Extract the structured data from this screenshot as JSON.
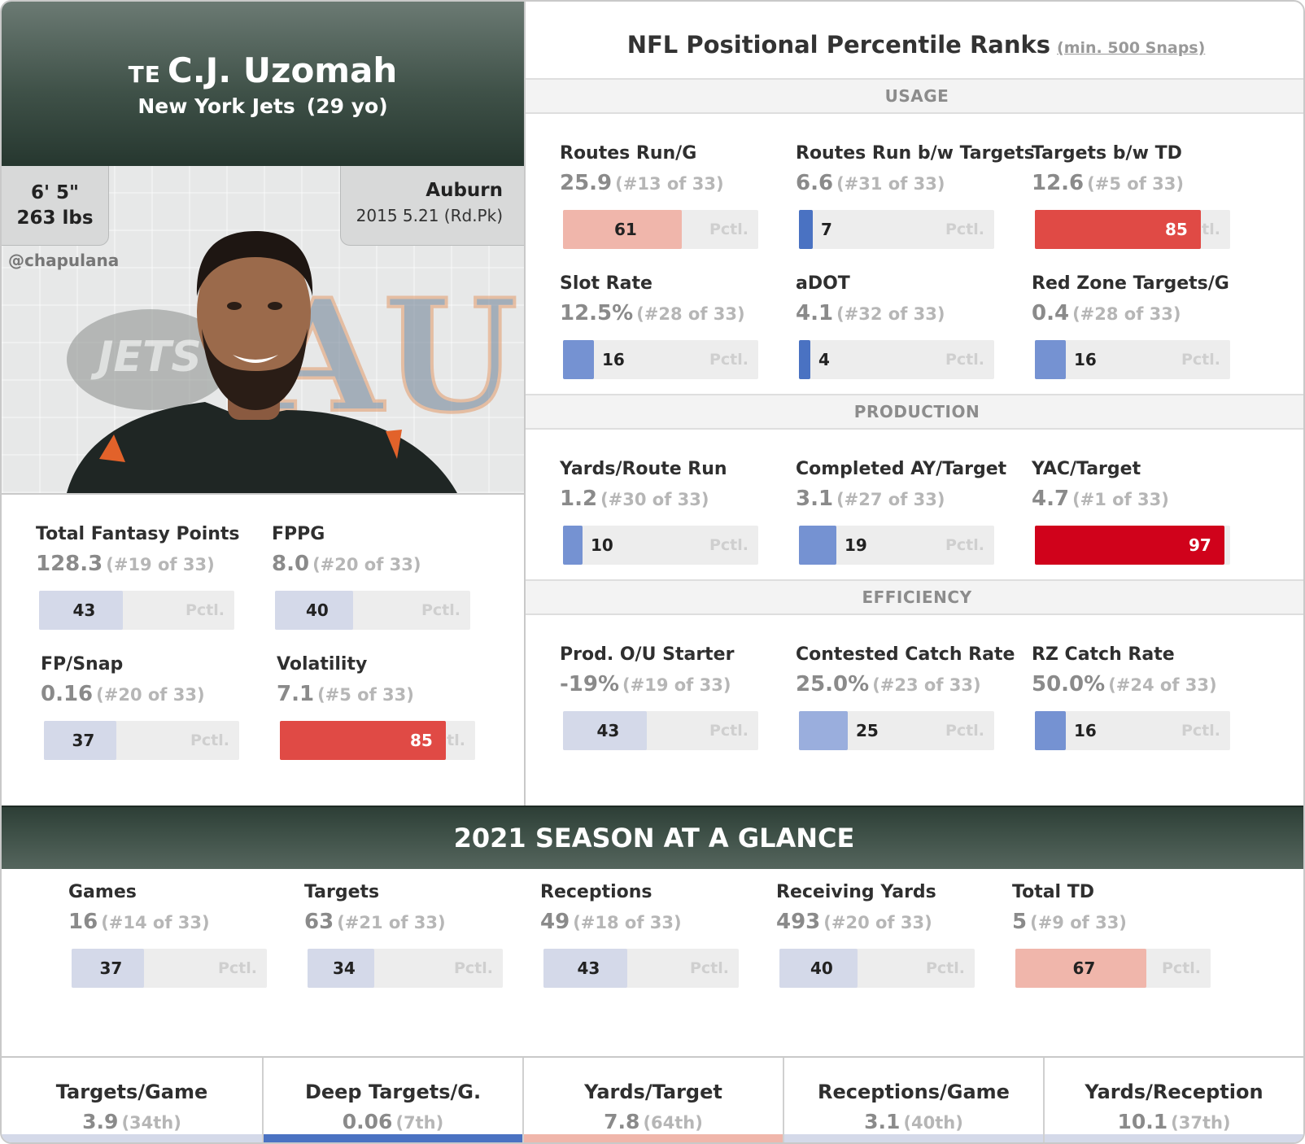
{
  "player": {
    "position": "TE",
    "name": "C.J. Uzomah",
    "team": "New York Jets",
    "age": "(29 yo)",
    "height": "6' 5\"",
    "weight": "263 lbs",
    "college": "Auburn",
    "draft": "2015 5.21 (Rd.Pk)",
    "handle": "@chapulana",
    "team_logo_text": "JETS",
    "college_logo_text": "AU"
  },
  "colors": {
    "header_dark": "#26372f",
    "blue_low": "#4a72c2",
    "blue_light": "#d3d8ea",
    "red_high": "#d0021b",
    "salmon": "#f0b6ab",
    "neutral": "#d7dbe6"
  },
  "pctl_text": "Pctl.",
  "left_metrics": [
    {
      "label": "Total Fantasy Points",
      "value": "128.3",
      "rank": "(#19 of 33)",
      "pctl": 43
    },
    {
      "label": "FPPG",
      "value": "8.0",
      "rank": "(#20 of 33)",
      "pctl": 40
    },
    {
      "label": "FP/Snap",
      "value": "0.16",
      "rank": "(#20 of 33)",
      "pctl": 37
    },
    {
      "label": "Volatility",
      "value": "7.1",
      "rank": "(#5 of 33)",
      "pctl": 85
    }
  ],
  "ranks": {
    "title": "NFL Positional Percentile Ranks",
    "subtitle": "(min. 500 Snaps)",
    "sections": [
      {
        "name": "USAGE",
        "metrics": [
          {
            "label": "Routes Run/G",
            "value": "25.9",
            "rank": "(#13 of 33)",
            "pctl": 61
          },
          {
            "label": "Routes Run b/w Targets",
            "value": "6.6",
            "rank": "(#31 of 33)",
            "pctl": 7
          },
          {
            "label": "Targets b/w TD",
            "value": "12.6",
            "rank": "(#5 of 33)",
            "pctl": 85
          },
          {
            "label": "Slot Rate",
            "value": "12.5%",
            "rank": "(#28 of 33)",
            "pctl": 16
          },
          {
            "label": "aDOT",
            "value": "4.1",
            "rank": "(#32 of 33)",
            "pctl": 4
          },
          {
            "label": "Red Zone Targets/G",
            "value": "0.4",
            "rank": "(#28 of 33)",
            "pctl": 16
          }
        ]
      },
      {
        "name": "PRODUCTION",
        "metrics": [
          {
            "label": "Yards/Route Run",
            "value": "1.2",
            "rank": "(#30 of 33)",
            "pctl": 10
          },
          {
            "label": "Completed AY/Target",
            "value": "3.1",
            "rank": "(#27 of 33)",
            "pctl": 19
          },
          {
            "label": "YAC/Target",
            "value": "4.7",
            "rank": "(#1 of 33)",
            "pctl": 97
          }
        ]
      },
      {
        "name": "EFFICIENCY",
        "metrics": [
          {
            "label": "Prod. O/U Starter",
            "value": "-19%",
            "rank": "(#19 of 33)",
            "pctl": 43
          },
          {
            "label": "Contested Catch Rate",
            "value": "25.0%",
            "rank": "(#23 of 33)",
            "pctl": 25
          },
          {
            "label": "RZ Catch Rate",
            "value": "50.0%",
            "rank": "(#24 of 33)",
            "pctl": 16
          }
        ]
      }
    ]
  },
  "season": {
    "title": "2021 SEASON AT A GLANCE",
    "metrics": [
      {
        "label": "Games",
        "value": "16",
        "rank": "(#14 of 33)",
        "pctl": 37
      },
      {
        "label": "Targets",
        "value": "63",
        "rank": "(#21 of 33)",
        "pctl": 34
      },
      {
        "label": "Receptions",
        "value": "49",
        "rank": "(#18 of 33)",
        "pctl": 43
      },
      {
        "label": "Receiving Yards",
        "value": "493",
        "rank": "(#20 of 33)",
        "pctl": 40
      },
      {
        "label": "Total TD",
        "value": "5",
        "rank": "(#9 of 33)",
        "pctl": 67
      }
    ],
    "footer": [
      {
        "label": "Targets/Game",
        "value": "3.9",
        "rank": "(34th)",
        "pctl": 34
      },
      {
        "label": "Deep Targets/G.",
        "value": "0.06",
        "rank": "(7th)",
        "pctl": 7
      },
      {
        "label": "Yards/Target",
        "value": "7.8",
        "rank": "(64th)",
        "pctl": 64
      },
      {
        "label": "Receptions/Game",
        "value": "3.1",
        "rank": "(40th)",
        "pctl": 40
      },
      {
        "label": "Yards/Reception",
        "value": "10.1",
        "rank": "(37th)",
        "pctl": 37
      }
    ]
  }
}
